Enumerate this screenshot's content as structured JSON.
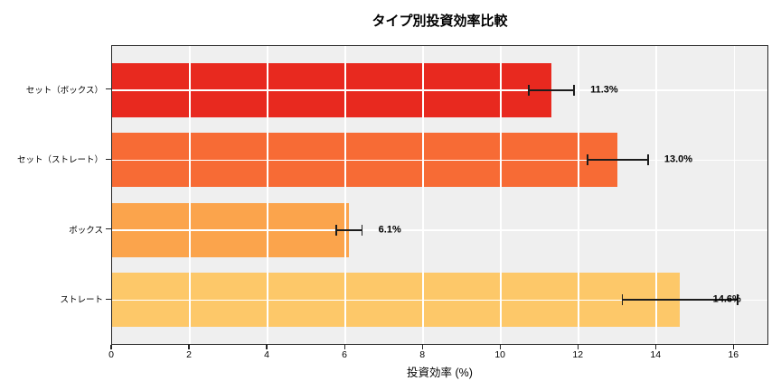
{
  "chart_data": {
    "type": "bar",
    "orientation": "horizontal",
    "title": "タイプ別投資効率比較",
    "xlabel": "投資効率 (%)",
    "categories": [
      "セット（ボックス）",
      "セット（ストレート）",
      "ボックス",
      "ストレート"
    ],
    "values": [
      11.3,
      13.0,
      6.1,
      14.6
    ],
    "errors": [
      0.6,
      0.8,
      0.35,
      1.5
    ],
    "value_labels": [
      "11.3%",
      "13.0%",
      "6.1%",
      "14.6%"
    ],
    "bar_colors": [
      "#e8291f",
      "#f76b35",
      "#fba44c",
      "#fdc869"
    ],
    "xticks": [
      0,
      2,
      4,
      6,
      8,
      10,
      12,
      14,
      16
    ],
    "xlim": [
      0,
      16.9
    ],
    "grid": true,
    "legend": false,
    "plot_background": "#efefef",
    "grid_color": "#ffffff",
    "spine_color": "#262626",
    "error_bar_color": "#1c1c1c",
    "text_color": "#000000"
  }
}
